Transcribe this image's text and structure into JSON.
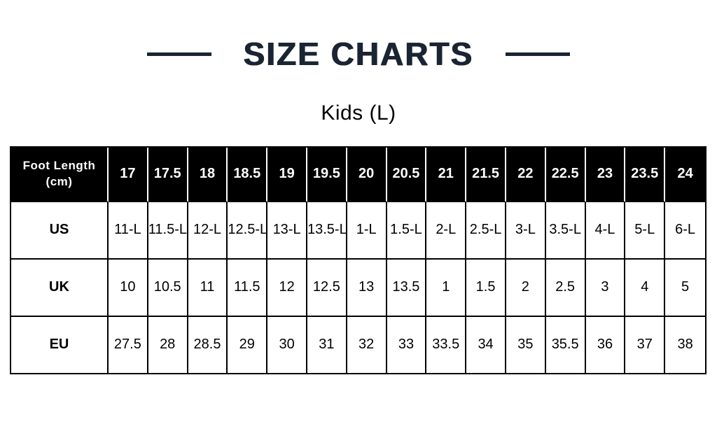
{
  "header": {
    "title": "SIZE CHARTS",
    "subtitle": "Kids (L)"
  },
  "table": {
    "corner_header": {
      "line1": "Foot Length",
      "line2": "(cm)"
    },
    "foot_lengths": [
      "17",
      "17.5",
      "18",
      "18.5",
      "19",
      "19.5",
      "20",
      "20.5",
      "21",
      "21.5",
      "22",
      "22.5",
      "23",
      "23.5",
      "24"
    ],
    "rows": [
      {
        "label": "US",
        "values": [
          "11-L",
          "11.5-L",
          "12-L",
          "12.5-L",
          "13-L",
          "13.5-L",
          "1-L",
          "1.5-L",
          "2-L",
          "2.5-L",
          "3-L",
          "3.5-L",
          "4-L",
          "5-L",
          "6-L"
        ]
      },
      {
        "label": "UK",
        "values": [
          "10",
          "10.5",
          "11",
          "11.5",
          "12",
          "12.5",
          "13",
          "13.5",
          "1",
          "1.5",
          "2",
          "2.5",
          "3",
          "4",
          "5"
        ]
      },
      {
        "label": "EU",
        "values": [
          "27.5",
          "28",
          "28.5",
          "29",
          "30",
          "31",
          "32",
          "33",
          "33.5",
          "34",
          "35",
          "35.5",
          "36",
          "37",
          "38"
        ]
      }
    ]
  },
  "colors": {
    "title_color": "#1a2433",
    "header_bg": "#000000",
    "header_text": "#ffffff",
    "body_text": "#000000",
    "border_color": "#000000"
  }
}
